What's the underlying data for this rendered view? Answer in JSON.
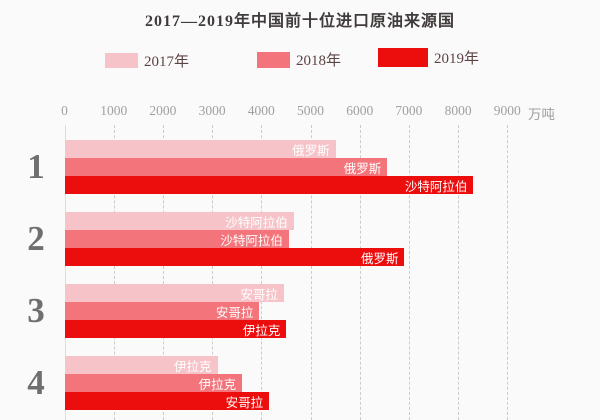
{
  "title": "2017—2019年中国前十位进口原油来源国",
  "legend": [
    {
      "label": "2017年",
      "color": "#f6c3c8"
    },
    {
      "label": "2018年",
      "color": "#f3747b"
    },
    {
      "label": "2019年",
      "color": "#ec0d0d"
    }
  ],
  "axis": {
    "ticks": [
      "0",
      "1000",
      "2000",
      "3000",
      "4000",
      "5000",
      "6000",
      "7000",
      "8000",
      "9000"
    ],
    "unit": "万吨"
  },
  "chart_data": {
    "type": "bar",
    "orientation": "horizontal",
    "title": "2017—2019年中国前十位进口原油来源国",
    "xlabel": "万吨",
    "xlim": [
      0,
      9000
    ],
    "grid": "dashed-vertical",
    "legend_position": "top",
    "series_years": [
      "2017",
      "2018",
      "2019"
    ],
    "groups": [
      {
        "rank": "1",
        "bars": [
          {
            "year": "2017",
            "country": "俄罗斯",
            "value": 5500
          },
          {
            "year": "2018",
            "country": "俄罗斯",
            "value": 6550
          },
          {
            "year": "2019",
            "country": "沙特阿拉伯",
            "value": 8300
          }
        ]
      },
      {
        "rank": "2",
        "bars": [
          {
            "year": "2017",
            "country": "沙特阿拉伯",
            "value": 4650
          },
          {
            "year": "2018",
            "country": "沙特阿拉伯",
            "value": 4550
          },
          {
            "year": "2019",
            "country": "俄罗斯",
            "value": 6900
          }
        ]
      },
      {
        "rank": "3",
        "bars": [
          {
            "year": "2017",
            "country": "安哥拉",
            "value": 4450
          },
          {
            "year": "2018",
            "country": "安哥拉",
            "value": 3950
          },
          {
            "year": "2019",
            "country": "伊拉克",
            "value": 4500
          }
        ]
      },
      {
        "rank": "4",
        "bars": [
          {
            "year": "2017",
            "country": "伊拉克",
            "value": 3100
          },
          {
            "year": "2018",
            "country": "伊拉克",
            "value": 3600
          },
          {
            "year": "2019",
            "country": "安哥拉",
            "value": 4150
          }
        ]
      }
    ]
  }
}
